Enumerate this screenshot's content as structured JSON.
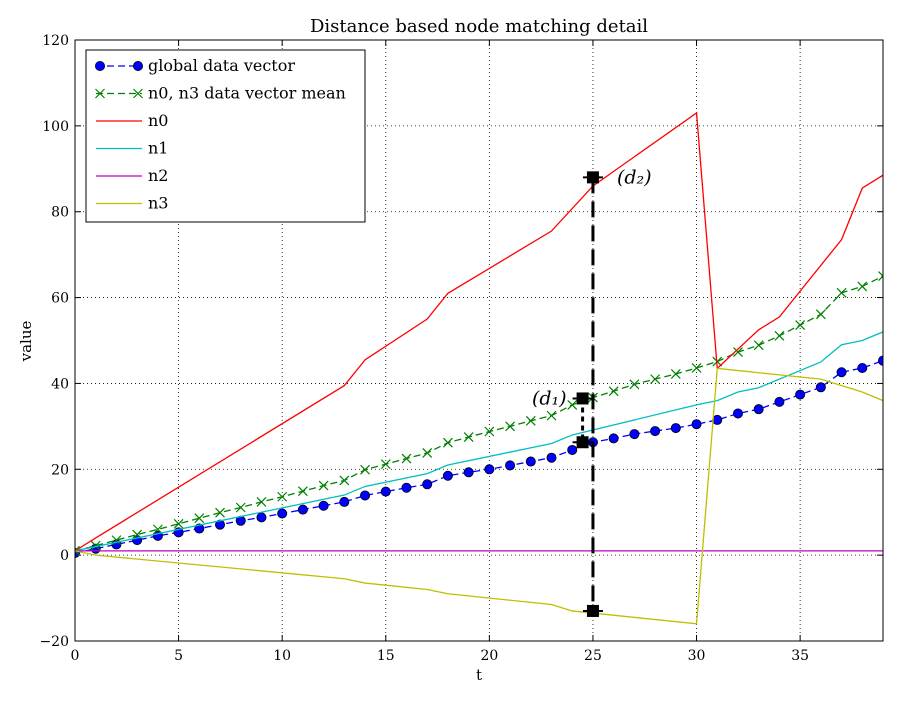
{
  "chart_data": {
    "type": "line",
    "title": "Distance based node matching detail",
    "xlabel": "t",
    "ylabel": "value",
    "xlim": [
      0,
      39
    ],
    "ylim": [
      -20,
      120
    ],
    "xticks": [
      0,
      5,
      10,
      15,
      20,
      25,
      30,
      35
    ],
    "yticks": [
      -20,
      0,
      20,
      40,
      60,
      80,
      100,
      120
    ],
    "xtick_labels": [
      "0",
      "5",
      "10",
      "15",
      "20",
      "25",
      "30",
      "35"
    ],
    "ytick_labels": [
      "−20",
      "0",
      "20",
      "40",
      "60",
      "80",
      "100",
      "120"
    ],
    "grid": true,
    "legend_position": "upper-left",
    "series": [
      {
        "name": "global data vector",
        "color": "#0000ff",
        "style": "dashed-circle-markers",
        "x": [
          0,
          1,
          2,
          3,
          4,
          5,
          6,
          7,
          8,
          9,
          10,
          11,
          12,
          13,
          14,
          15,
          16,
          17,
          18,
          19,
          20,
          21,
          22,
          23,
          24,
          25,
          26,
          27,
          28,
          29,
          30,
          31,
          32,
          33,
          34,
          35,
          36,
          37,
          38,
          39
        ],
        "y": [
          0.5,
          1.5,
          2.5,
          3.5,
          4.5,
          5.3,
          6.2,
          7.1,
          8,
          8.8,
          9.7,
          10.6,
          11.5,
          12.4,
          13.9,
          14.8,
          15.7,
          16.5,
          18.5,
          19.3,
          20,
          20.9,
          21.8,
          22.7,
          24.5,
          26.3,
          27.2,
          28.2,
          28.9,
          29.6,
          30.5,
          31.5,
          33,
          34,
          35.7,
          37.4,
          39.1,
          42.6,
          43.6,
          45.3
        ]
      },
      {
        "name": "n0, n3 data vector mean",
        "color": "#008000",
        "style": "dashed-x-markers",
        "x": [
          0,
          1,
          2,
          3,
          4,
          5,
          6,
          7,
          8,
          9,
          10,
          11,
          12,
          13,
          14,
          15,
          16,
          17,
          18,
          19,
          20,
          21,
          22,
          23,
          24,
          25,
          26,
          27,
          28,
          29,
          30,
          31,
          32,
          33,
          34,
          35,
          36,
          37,
          38,
          39
        ],
        "y": [
          1,
          2.2,
          3.5,
          4.8,
          6,
          7.3,
          8.6,
          9.9,
          11.1,
          12.4,
          13.6,
          14.9,
          16.2,
          17.4,
          19.9,
          21.2,
          22.5,
          23.8,
          26.2,
          27.5,
          28.8,
          30,
          31.3,
          32.5,
          35,
          36.7,
          38.2,
          39.8,
          41,
          42.2,
          43.6,
          45.1,
          47.3,
          48.9,
          51.1,
          53.6,
          56.1,
          61.1,
          62.6,
          65
        ]
      },
      {
        "name": "n0",
        "color": "#ff0000",
        "style": "solid",
        "x": [
          0,
          1,
          13,
          14,
          17,
          18,
          23,
          25,
          30,
          31,
          33,
          34,
          37,
          38,
          39
        ],
        "y": [
          1,
          4,
          39.5,
          45.5,
          55,
          61,
          75.5,
          86,
          103,
          43.5,
          52.5,
          55.5,
          73.5,
          85.5,
          88.5
        ]
      },
      {
        "name": "n1",
        "color": "#00bfbf",
        "style": "solid",
        "x": [
          0,
          1,
          13,
          14,
          17,
          18,
          23,
          24,
          30,
          31,
          32,
          33,
          36,
          37,
          38,
          39
        ],
        "y": [
          1,
          2,
          14,
          16,
          19,
          21,
          26,
          28,
          35,
          36,
          38,
          39,
          45,
          49,
          50,
          52
        ]
      },
      {
        "name": "n2",
        "color": "#bf00bf",
        "style": "solid",
        "x": [
          0,
          39
        ],
        "y": [
          1,
          1
        ]
      },
      {
        "name": "n3",
        "color": "#bfbf00",
        "style": "solid",
        "x": [
          0,
          1,
          13,
          14,
          17,
          18,
          23,
          24,
          30,
          31,
          32,
          34,
          36,
          38,
          39
        ],
        "y": [
          1,
          0,
          -5.5,
          -6.5,
          -8,
          -9,
          -11.5,
          -13,
          -16,
          43.5,
          43,
          42,
          41,
          38,
          36
        ]
      }
    ],
    "annotations": [
      {
        "label": "(d₁)",
        "x": 24.5,
        "y_top": 36.5,
        "y_bottom": 26.3,
        "note_side": "left"
      },
      {
        "label": "(d₂)",
        "x": 25,
        "y_top": 88,
        "y_bottom": -13,
        "note_side": "right"
      }
    ]
  }
}
